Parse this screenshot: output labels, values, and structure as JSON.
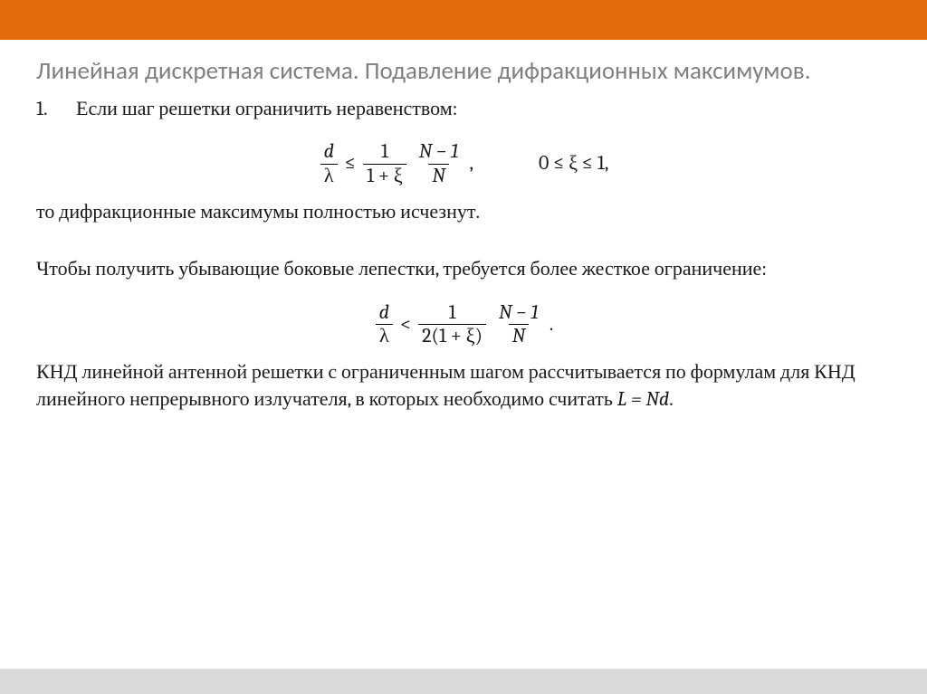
{
  "colors": {
    "top_bar": "#e36c0a",
    "bottom_bar": "#d9d9d9",
    "title_color": "#808080",
    "text_color": "#1a1a1a",
    "background": "#ffffff"
  },
  "typography": {
    "title_fontsize": 27,
    "body_fontsize": 22,
    "title_family": "Calibri",
    "body_family": "Cambria"
  },
  "title": "Линейная дискретная система. Подавление дифракционных максимумов.",
  "list_number": "1.",
  "p1": "Если шаг решетки ограничить неравенством:",
  "formula1": {
    "lhs_num": "d",
    "lhs_den": "λ",
    "op": "≤",
    "mid_num": "1",
    "mid_den": "1 + ξ",
    "rhs_num": "N − 1",
    "rhs_den": "N",
    "tail": ",",
    "cond": "0 ≤ ξ ≤ 1,"
  },
  "p2": "то дифракционные максимумы полностью исчезнут.",
  "p3": "Чтобы получить убывающие боковые лепестки, требуется более жесткое ограничение:",
  "formula2": {
    "lhs_num": "d",
    "lhs_den": "λ",
    "op": "<",
    "mid_num": "1",
    "mid_den": "2(1 + ξ)",
    "rhs_num": "N − 1",
    "rhs_den": "N",
    "tail": " ."
  },
  "p4_a": "КНД линейной антенной решетки с ограниченным шагом рассчитывается по формулам для КНД линейного непрерывного излучателя, в которых необходимо считать ",
  "p4_math": "L = Nd",
  "p4_b": "."
}
